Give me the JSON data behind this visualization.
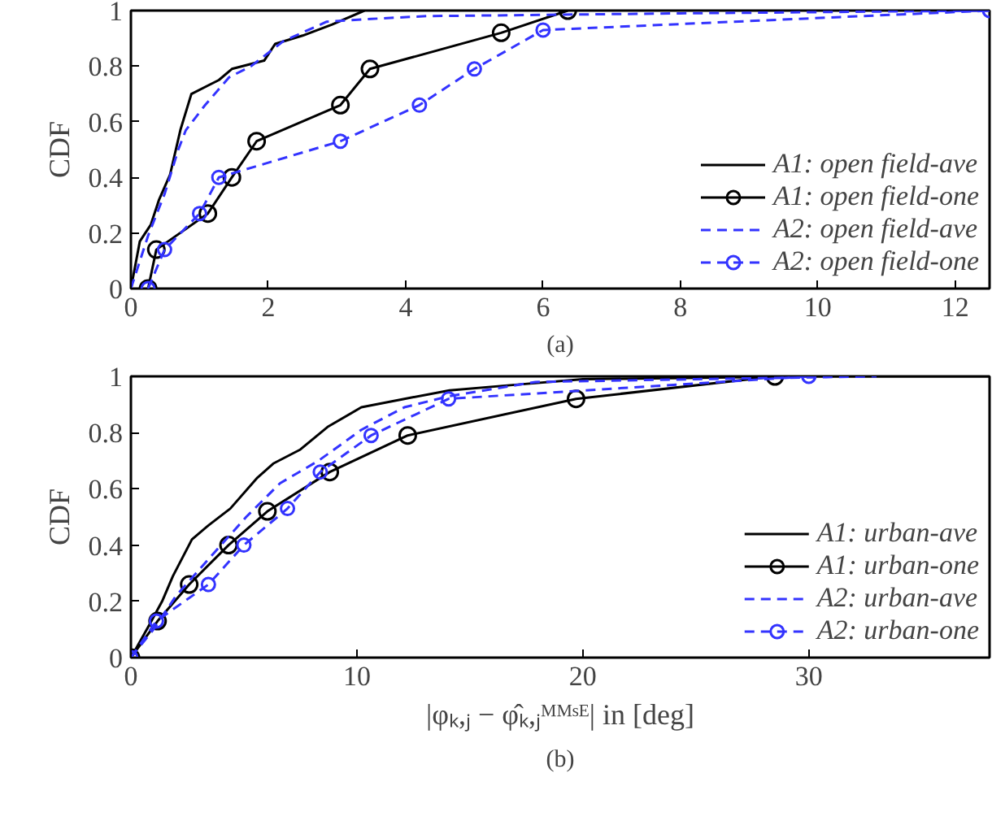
{
  "chart_data": [
    {
      "type": "line",
      "ylabel": "CDF",
      "annotations": [
        "(a)"
      ],
      "xlim": [
        0,
        12.5
      ],
      "xticks": [
        0,
        2,
        4,
        6,
        8,
        10,
        12
      ],
      "ylim": [
        0,
        1
      ],
      "yticks": [
        0,
        0.2,
        0.4,
        0.6,
        0.8,
        1
      ],
      "grid": false,
      "legend": "bottom right",
      "series": [
        {
          "name": "A1: open field-ave",
          "color": "#000000",
          "line_style": "solid",
          "marker": "none",
          "x": [
            0,
            0.13,
            0.29,
            0.41,
            0.57,
            0.72,
            0.88,
            1.28,
            1.47,
            1.94,
            2.1,
            2.5,
            2.93,
            3.4
          ],
          "values": [
            0,
            0.17,
            0.23,
            0.32,
            0.41,
            0.57,
            0.7,
            0.75,
            0.79,
            0.82,
            0.88,
            0.91,
            0.95,
            1
          ]
        },
        {
          "name": "A1: open field-one",
          "color": "#000000",
          "line_style": "solid",
          "marker": "circle",
          "x": [
            0.25,
            0.37,
            1.12,
            1.47,
            1.83,
            3.05,
            3.48,
            5.39,
            6.36
          ],
          "values": [
            0,
            0.14,
            0.27,
            0.4,
            0.53,
            0.66,
            0.79,
            0.92,
            1
          ]
        },
        {
          "name": "A2: open field-ave",
          "color": "#3333ff",
          "line_style": "dashed",
          "marker": "none",
          "x": [
            0,
            0.25,
            0.49,
            0.69,
            0.8,
            1.08,
            1.43,
            1.75,
            2.22,
            2.85,
            3.5,
            4.3,
            8,
            12.5
          ],
          "values": [
            0,
            0.19,
            0.34,
            0.5,
            0.57,
            0.66,
            0.76,
            0.8,
            0.89,
            0.96,
            0.97,
            0.98,
            0.99,
            1
          ]
        },
        {
          "name": "A2: open field-one",
          "color": "#3333ff",
          "line_style": "dashed",
          "marker": "circle",
          "x": [
            0.25,
            0.49,
            1.0,
            1.28,
            3.05,
            4.2,
            5.0,
            6.0,
            12.5
          ],
          "values": [
            0,
            0.14,
            0.27,
            0.4,
            0.53,
            0.66,
            0.79,
            0.93,
            1
          ]
        }
      ]
    },
    {
      "type": "line",
      "ylabel": "CDF",
      "xlabel": "|φₖ,ⱼ − φ̂ₖ,ⱼᴹᴹˢᴱ| in [deg]",
      "annotations": [
        "(b)"
      ],
      "xlim": [
        0,
        38
      ],
      "xticks": [
        0,
        10,
        20,
        30
      ],
      "ylim": [
        0,
        1
      ],
      "yticks": [
        0,
        0.2,
        0.4,
        0.6,
        0.8,
        1
      ],
      "grid": false,
      "legend": "bottom right",
      "series": [
        {
          "name": "A1: urban-ave",
          "color": "#000000",
          "line_style": "solid",
          "marker": "none",
          "x": [
            0,
            0.77,
            1.38,
            1.86,
            2.7,
            3.43,
            4.4,
            5.6,
            6.3,
            7.5,
            8.7,
            10.2,
            12.1,
            14.1,
            17,
            20,
            30,
            38
          ],
          "values": [
            0,
            0.11,
            0.2,
            0.29,
            0.42,
            0.47,
            0.53,
            0.64,
            0.69,
            0.74,
            0.82,
            0.89,
            0.92,
            0.95,
            0.97,
            0.99,
            1,
            1
          ]
        },
        {
          "name": "A1: urban-one",
          "color": "#000000",
          "line_style": "solid",
          "marker": "circle",
          "x": [
            0,
            1.18,
            2.58,
            4.32,
            6.04,
            8.8,
            12.25,
            19.7,
            28.5
          ],
          "values": [
            0,
            0.13,
            0.26,
            0.4,
            0.52,
            0.66,
            0.79,
            0.92,
            1
          ]
        },
        {
          "name": "A2: urban-ave",
          "color": "#3333ff",
          "line_style": "dashed",
          "marker": "none",
          "x": [
            0,
            1.0,
            2.0,
            3.43,
            5.1,
            6.6,
            8.3,
            10.2,
            12.1,
            14.1,
            17.9,
            25,
            33
          ],
          "values": [
            0,
            0.1,
            0.22,
            0.35,
            0.5,
            0.62,
            0.7,
            0.81,
            0.89,
            0.93,
            0.98,
            0.99,
            1
          ]
        },
        {
          "name": "A2: urban-one",
          "color": "#3333ff",
          "line_style": "dashed",
          "marker": "circle",
          "x": [
            0,
            1.13,
            3.43,
            5.0,
            6.93,
            8.38,
            10.63,
            14.06,
            30
          ],
          "values": [
            0,
            0.13,
            0.26,
            0.4,
            0.53,
            0.66,
            0.79,
            0.92,
            1
          ]
        }
      ]
    }
  ]
}
